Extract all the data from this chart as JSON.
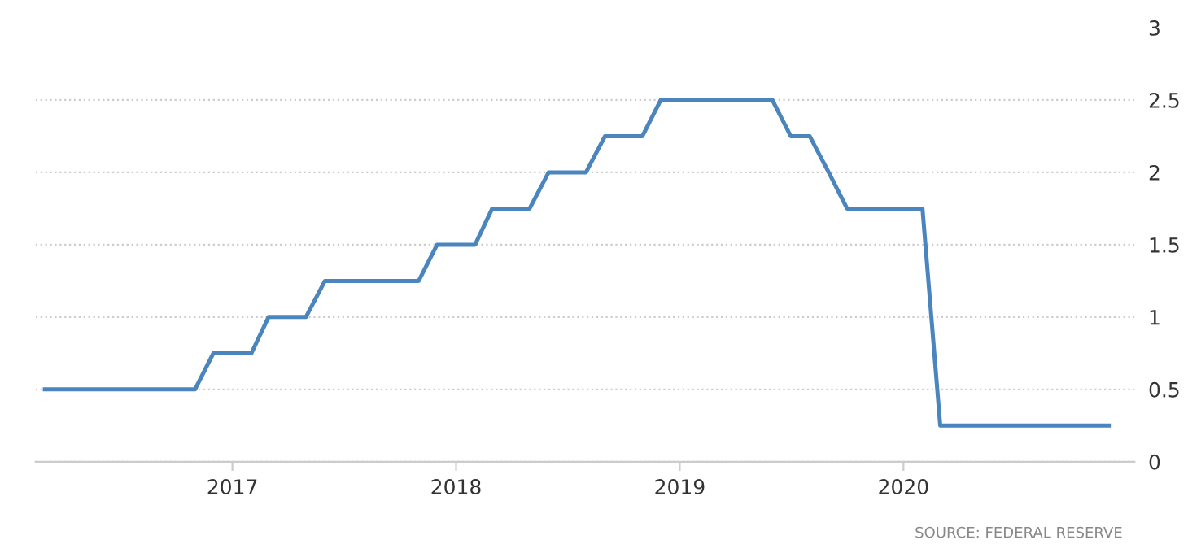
{
  "chart_data": {
    "type": "line",
    "x": [
      "2016-03",
      "2016-04",
      "2016-05",
      "2016-06",
      "2016-07",
      "2016-08",
      "2016-09",
      "2016-10",
      "2016-11",
      "2016-12",
      "2017-01",
      "2017-02",
      "2017-03",
      "2017-04",
      "2017-05",
      "2017-06",
      "2017-07",
      "2017-08",
      "2017-09",
      "2017-10",
      "2017-11",
      "2017-12",
      "2018-01",
      "2018-02",
      "2018-03",
      "2018-04",
      "2018-05",
      "2018-06",
      "2018-07",
      "2018-08",
      "2018-09",
      "2018-10",
      "2018-11",
      "2018-12",
      "2019-01",
      "2019-02",
      "2019-03",
      "2019-04",
      "2019-05",
      "2019-06",
      "2019-07",
      "2019-08",
      "2019-09",
      "2019-10",
      "2019-11",
      "2019-12",
      "2020-01",
      "2020-02",
      "2020-03",
      "2020-04",
      "2020-05",
      "2020-06",
      "2020-07",
      "2020-08",
      "2020-09",
      "2020-10",
      "2020-11",
      "2020-12"
    ],
    "series": [
      {
        "color": "#4a85bd",
        "values": [
          0.5,
          0.5,
          0.5,
          0.5,
          0.5,
          0.5,
          0.5,
          0.5,
          0.5,
          0.75,
          0.75,
          0.75,
          1,
          1,
          1,
          1.25,
          1.25,
          1.25,
          1.25,
          1.25,
          1.25,
          1.5,
          1.5,
          1.5,
          1.75,
          1.75,
          1.75,
          2,
          2,
          2,
          2.25,
          2.25,
          2.25,
          2.5,
          2.5,
          2.5,
          2.5,
          2.5,
          2.5,
          2.5,
          2.25,
          2.25,
          2,
          1.75,
          1.75,
          1.75,
          1.75,
          1.75,
          0.25,
          0.25,
          0.25,
          0.25,
          0.25,
          0.25,
          0.25,
          0.25,
          0.25,
          0.25
        ]
      }
    ],
    "xlim": [
      "2016-02-15",
      "2021-01-12"
    ],
    "xticks": [
      {
        "value": "2017-01",
        "label": "2017"
      },
      {
        "value": "2018-01",
        "label": "2018"
      },
      {
        "value": "2019-01",
        "label": "2019"
      },
      {
        "value": "2020-01",
        "label": "2020"
      }
    ],
    "ylim": [
      0,
      3
    ],
    "yticks": [
      0,
      0.5,
      1,
      1.5,
      2,
      2.5,
      3
    ],
    "grid": "y",
    "line_style": "solid",
    "annotations": [
      "SOURCE: FEDERAL RESERVE"
    ]
  }
}
